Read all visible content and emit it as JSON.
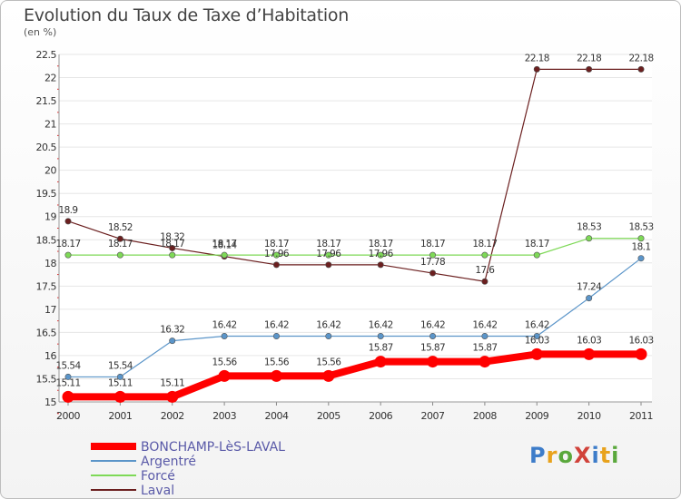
{
  "title": "Evolution du Taux de Taxe d’Habitation",
  "subtitle": "(en %)",
  "logo": "ProXiti",
  "chart_data": {
    "type": "line",
    "x": [
      "2000",
      "2001",
      "2002",
      "2003",
      "2004",
      "2005",
      "2006",
      "2007",
      "2008",
      "2009",
      "2010",
      "2011"
    ],
    "ylim": [
      15,
      22.5
    ],
    "yticks": [
      15,
      15.5,
      16,
      16.5,
      17,
      17.5,
      18,
      18.5,
      19,
      19.5,
      20,
      20.5,
      21,
      21.5,
      22,
      22.5
    ],
    "ytick_labels": [
      "15",
      "15.5",
      "16",
      "16.5",
      "17",
      "17.5",
      "18",
      "18.5",
      "19",
      "19.5",
      "20",
      "20.5",
      "21",
      "21.5",
      "22",
      "22.5"
    ],
    "grid": "horizontal",
    "legend_position": "bottom-left",
    "series": [
      {
        "name": "BONCHAMP-LèS-LAVAL",
        "color": "#ff0000",
        "values": [
          15.11,
          15.11,
          15.11,
          15.56,
          15.56,
          15.56,
          15.87,
          15.87,
          15.87,
          16.03,
          16.03,
          16.03
        ],
        "labels": [
          "15.11",
          "15.11",
          "15.11",
          "15.56",
          "15.56",
          "15.56",
          "15.87",
          "15.87",
          "15.87",
          "16.03",
          "16.03",
          "16.03"
        ]
      },
      {
        "name": "Argentré",
        "color": "#5b95c9",
        "values": [
          15.54,
          15.54,
          16.32,
          16.42,
          16.42,
          16.42,
          16.42,
          16.42,
          16.42,
          16.42,
          17.24,
          18.1
        ],
        "labels": [
          "15.54",
          "15.54",
          "16.32",
          "16.42",
          "16.42",
          "16.42",
          "16.42",
          "16.42",
          "16.42",
          "16.42",
          "17.24",
          "18.1"
        ]
      },
      {
        "name": "Forcé",
        "color": "#7ed957",
        "values": [
          18.17,
          18.17,
          18.17,
          18.17,
          18.17,
          18.17,
          18.17,
          18.17,
          18.17,
          18.17,
          18.53,
          18.53
        ],
        "labels": [
          "18.17",
          "18.17",
          "18.17",
          "18.17",
          "18.17",
          "18.17",
          "18.17",
          "18.17",
          "18.17",
          "18.17",
          "18.53",
          "18.53"
        ]
      },
      {
        "name": "Laval",
        "color": "#6b1f1f",
        "values": [
          18.9,
          18.52,
          18.32,
          18.14,
          17.96,
          17.96,
          17.96,
          17.78,
          17.6,
          22.18,
          22.18,
          22.18
        ],
        "labels": [
          "18.9",
          "18.52",
          "18.32",
          "18.14",
          "17.96",
          "17.96",
          "17.96",
          "17.78",
          "17.6",
          "22.18",
          "22.18",
          "22.18"
        ]
      }
    ]
  }
}
